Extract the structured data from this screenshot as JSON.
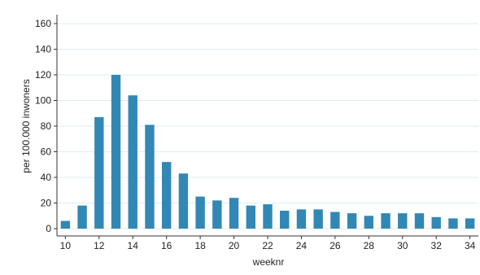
{
  "chart_data": {
    "type": "bar",
    "title": "",
    "xlabel": "weeknr",
    "ylabel": "per 100.000 inwoners",
    "x": [
      10,
      11,
      12,
      13,
      14,
      15,
      16,
      17,
      18,
      19,
      20,
      21,
      22,
      23,
      24,
      25,
      26,
      27,
      28,
      29,
      30,
      31,
      32,
      33,
      34
    ],
    "values": [
      6,
      18,
      87,
      120,
      104,
      81,
      52,
      43,
      25,
      22,
      24,
      18,
      19,
      14,
      15,
      15,
      13,
      12,
      10,
      12,
      12,
      12,
      9,
      8,
      8
    ],
    "ylim": [
      0,
      160
    ],
    "yticks": [
      0,
      20,
      40,
      60,
      80,
      100,
      120,
      140,
      160
    ],
    "xlim": [
      9.5,
      34.5
    ],
    "xticks": [
      10,
      12,
      14,
      16,
      18,
      20,
      22,
      24,
      26,
      28,
      30,
      32,
      34
    ],
    "grid": "horizontal",
    "colors": {
      "bar": "#3288B4",
      "grid": "#DDEEF3",
      "axis": "#333333"
    }
  }
}
